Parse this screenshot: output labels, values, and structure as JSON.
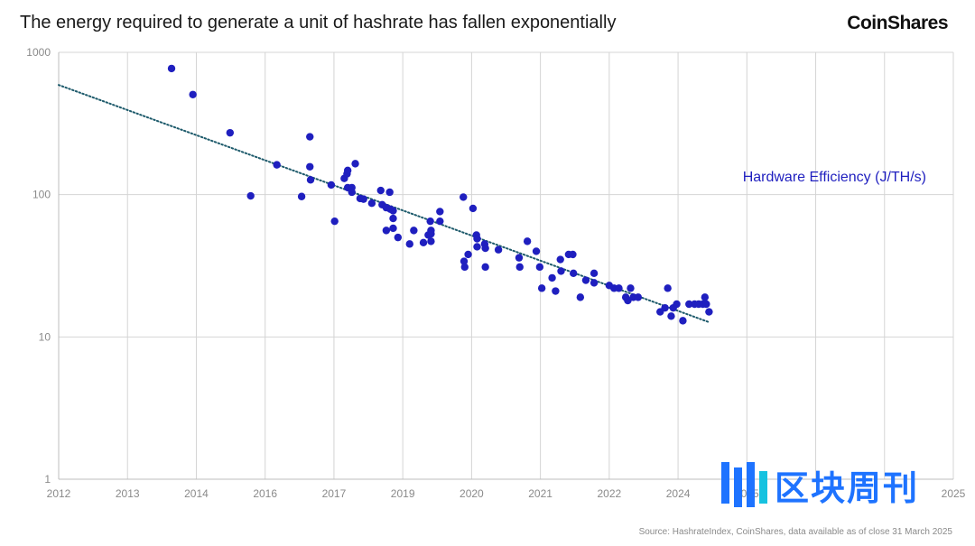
{
  "header": {
    "title": "The energy required to generate a unit of hashrate has fallen exponentially",
    "brand": "CoinShares"
  },
  "footer": {
    "source": "Source: HashrateIndex, CoinShares, data available as of close 31 March 2025"
  },
  "watermark": {
    "text": "区块周刊"
  },
  "chart_data": {
    "type": "scatter",
    "title": "",
    "xlabel": "",
    "ylabel": "",
    "y_scale": "log",
    "ylim": [
      1,
      1000
    ],
    "y_ticks": [
      1,
      10,
      100,
      1000
    ],
    "y_tick_labels": [
      "1",
      "10",
      "100",
      "1000"
    ],
    "xlim": [
      2012,
      2025
    ],
    "x_ticks": [
      {
        "label": "2012",
        "value": 2012
      },
      {
        "label": "2013",
        "value": 2013
      },
      {
        "label": "2014",
        "value": 2014
      },
      {
        "label": "2016",
        "value": 2015
      },
      {
        "label": "2017",
        "value": 2016
      },
      {
        "label": "2019",
        "value": 2017
      },
      {
        "label": "2020",
        "value": 2018
      },
      {
        "label": "2021",
        "value": 2019
      },
      {
        "label": "2022",
        "value": 2020
      },
      {
        "label": "2024",
        "value": 2021
      },
      {
        "label": "2025",
        "value": 2022
      },
      {
        "label": "",
        "value": 2023
      },
      {
        "label": "",
        "value": 2024
      },
      {
        "label": "2025",
        "value": 2025
      }
    ],
    "grid": true,
    "legend_position": "right",
    "series": [
      {
        "name": "Hardware Efficiency (J/TH/s)",
        "color": "#1f1fbf",
        "points": [
          [
            2013.64,
            770
          ],
          [
            2013.95,
            505
          ],
          [
            2014.49,
            272
          ],
          [
            2014.79,
            98
          ],
          [
            2015.17,
            162
          ],
          [
            2015.53,
            97
          ],
          [
            2015.65,
            255
          ],
          [
            2015.65,
            157
          ],
          [
            2015.66,
            127
          ],
          [
            2015.96,
            117
          ],
          [
            2016.01,
            65
          ],
          [
            2016.15,
            130
          ],
          [
            2016.19,
            140
          ],
          [
            2016.2,
            148
          ],
          [
            2016.2,
            112
          ],
          [
            2016.26,
            112
          ],
          [
            2016.26,
            104
          ],
          [
            2016.31,
            165
          ],
          [
            2016.38,
            94
          ],
          [
            2016.43,
            93
          ],
          [
            2016.55,
            87
          ],
          [
            2016.68,
            107
          ],
          [
            2016.7,
            85
          ],
          [
            2016.76,
            81
          ],
          [
            2016.76,
            56
          ],
          [
            2016.81,
            104
          ],
          [
            2016.82,
            79
          ],
          [
            2016.86,
            77
          ],
          [
            2016.86,
            68
          ],
          [
            2016.86,
            58
          ],
          [
            2016.93,
            50
          ],
          [
            2017.1,
            45
          ],
          [
            2017.16,
            56
          ],
          [
            2017.3,
            46
          ],
          [
            2017.37,
            52
          ],
          [
            2017.4,
            65
          ],
          [
            2017.41,
            56
          ],
          [
            2017.41,
            53
          ],
          [
            2017.41,
            47
          ],
          [
            2017.54,
            76
          ],
          [
            2017.54,
            65
          ],
          [
            2017.88,
            96
          ],
          [
            2017.89,
            34
          ],
          [
            2017.9,
            31
          ],
          [
            2017.95,
            38
          ],
          [
            2018.02,
            80
          ],
          [
            2018.07,
            52
          ],
          [
            2018.08,
            49
          ],
          [
            2018.08,
            43
          ],
          [
            2018.19,
            45
          ],
          [
            2018.2,
            42
          ],
          [
            2018.2,
            31
          ],
          [
            2018.39,
            41
          ],
          [
            2018.69,
            36
          ],
          [
            2018.7,
            31
          ],
          [
            2018.81,
            47
          ],
          [
            2018.94,
            40
          ],
          [
            2018.99,
            31
          ],
          [
            2019.02,
            22
          ],
          [
            2019.17,
            26
          ],
          [
            2019.22,
            21
          ],
          [
            2019.29,
            35
          ],
          [
            2019.3,
            29
          ],
          [
            2019.41,
            38
          ],
          [
            2019.47,
            38
          ],
          [
            2019.48,
            28
          ],
          [
            2019.58,
            19
          ],
          [
            2019.66,
            25
          ],
          [
            2019.78,
            28
          ],
          [
            2019.78,
            24
          ],
          [
            2020.0,
            23
          ],
          [
            2020.07,
            22
          ],
          [
            2020.14,
            22
          ],
          [
            2020.24,
            19
          ],
          [
            2020.27,
            18
          ],
          [
            2020.31,
            22
          ],
          [
            2020.35,
            19
          ],
          [
            2020.42,
            19
          ],
          [
            2020.74,
            15
          ],
          [
            2020.81,
            16
          ],
          [
            2020.85,
            22
          ],
          [
            2020.9,
            14
          ],
          [
            2020.93,
            16
          ],
          [
            2020.98,
            17
          ],
          [
            2021.07,
            13
          ],
          [
            2021.16,
            17
          ],
          [
            2021.24,
            17
          ],
          [
            2021.3,
            17
          ],
          [
            2021.36,
            17
          ],
          [
            2021.39,
            19
          ],
          [
            2021.41,
            17
          ],
          [
            2021.45,
            15
          ]
        ]
      }
    ],
    "trendline": {
      "style": "dotted",
      "color": "#1d5a6b",
      "from": [
        2012,
        590
      ],
      "to": [
        2021.45,
        12.7
      ]
    }
  }
}
